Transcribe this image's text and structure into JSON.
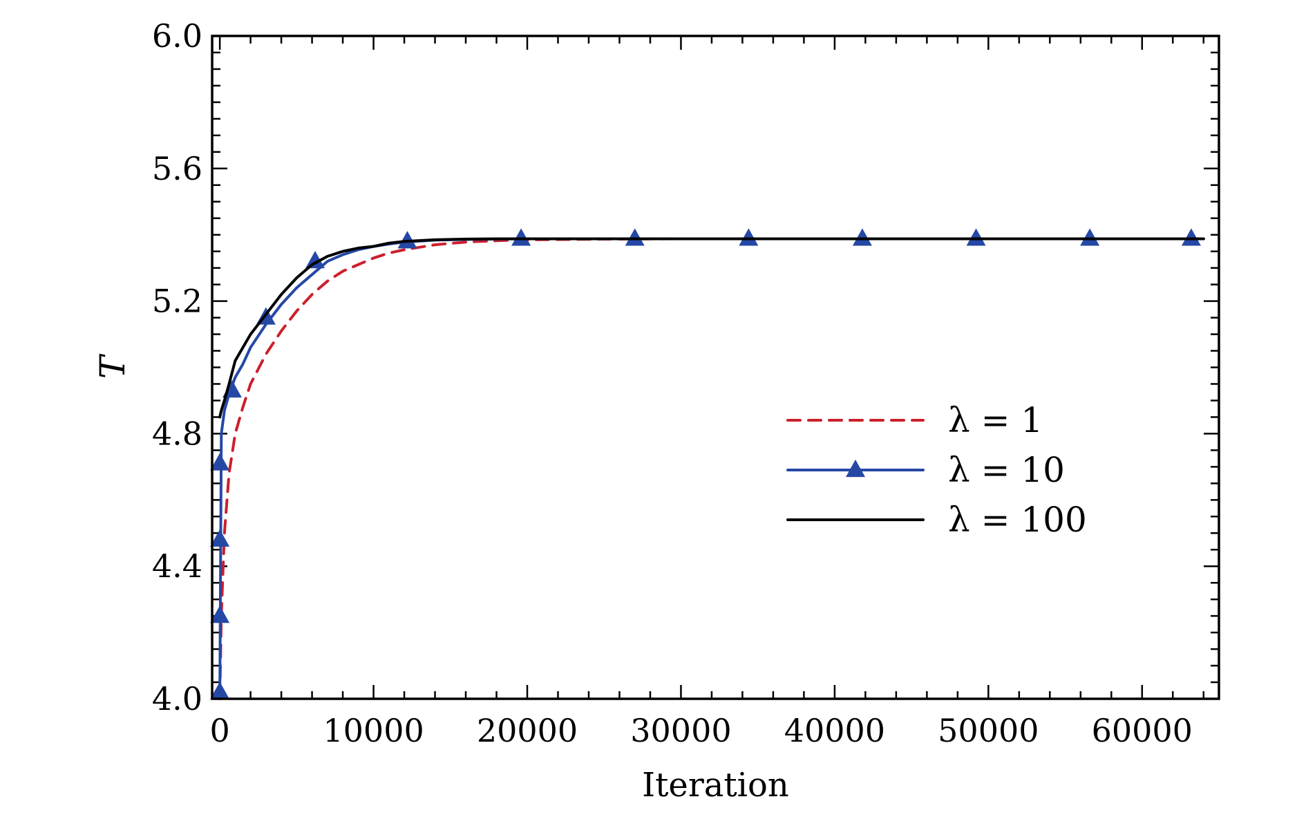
{
  "chart_data": {
    "type": "line",
    "title": "",
    "xlabel": "Iteration",
    "ylabel": "T",
    "xlim": [
      -500,
      65000
    ],
    "ylim": [
      4.0,
      6.0
    ],
    "xticks": [
      0,
      10000,
      20000,
      30000,
      40000,
      50000,
      60000
    ],
    "xtick_labels": [
      "0",
      "10000",
      "20000",
      "30000",
      "40000",
      "50000",
      "60000"
    ],
    "yticks": [
      4.0,
      4.4,
      4.8,
      5.2,
      5.6,
      6.0
    ],
    "ytick_labels": [
      "4.0",
      "4.4",
      "4.8",
      "5.2",
      "5.6",
      "6.0"
    ],
    "grid": false,
    "legend_position": "center-right",
    "series": [
      {
        "name": "λ = 1",
        "style": "dashed",
        "color": "#cc1f2b",
        "x": [
          0,
          100,
          300,
          600,
          1000,
          1500,
          2000,
          3000,
          4000,
          5000,
          6000,
          7000,
          8000,
          9000,
          10000,
          11000,
          12000,
          14000,
          16000,
          18000,
          20000,
          25000,
          30000,
          40000,
          50000,
          60000,
          64000
        ],
        "y": [
          4.0,
          4.25,
          4.5,
          4.68,
          4.8,
          4.88,
          4.95,
          5.04,
          5.11,
          5.17,
          5.22,
          5.26,
          5.29,
          5.31,
          5.33,
          5.345,
          5.355,
          5.37,
          5.378,
          5.382,
          5.385,
          5.387,
          5.388,
          5.388,
          5.388,
          5.388,
          5.388
        ]
      },
      {
        "name": "λ = 10",
        "style": "solid-triangles",
        "color": "#2548a5",
        "x": [
          0,
          100,
          300,
          600,
          1000,
          1500,
          2000,
          3000,
          4000,
          5000,
          6000,
          7000,
          8000,
          9000,
          10000,
          11000,
          12000,
          14000,
          16000,
          18000,
          20000,
          25000,
          30000,
          40000,
          50000,
          60000,
          64000
        ],
        "y": [
          4.0,
          4.8,
          4.87,
          4.92,
          4.97,
          5.01,
          5.06,
          5.13,
          5.19,
          5.24,
          5.28,
          5.32,
          5.34,
          5.355,
          5.365,
          5.372,
          5.378,
          5.384,
          5.386,
          5.387,
          5.388,
          5.388,
          5.388,
          5.388,
          5.388,
          5.388,
          5.388
        ],
        "marker_x": [
          0,
          0,
          0,
          0,
          800,
          3000,
          6200,
          12200,
          19600,
          27000,
          34400,
          41800,
          49200,
          56600,
          63200
        ],
        "marker_y": [
          4.02,
          4.25,
          4.48,
          4.71,
          4.93,
          5.15,
          5.32,
          5.38,
          5.388,
          5.388,
          5.388,
          5.388,
          5.388,
          5.388,
          5.388
        ]
      },
      {
        "name": "λ = 100",
        "style": "solid",
        "color": "#000000",
        "x": [
          0,
          100,
          300,
          600,
          1000,
          1500,
          2000,
          3000,
          4000,
          5000,
          6000,
          7000,
          8000,
          9000,
          10000,
          11000,
          12000,
          14000,
          16000,
          18000,
          20000,
          25000,
          30000,
          40000,
          50000,
          60000,
          64000
        ],
        "y": [
          4.85,
          4.87,
          4.9,
          4.95,
          5.02,
          5.06,
          5.1,
          5.16,
          5.22,
          5.27,
          5.31,
          5.335,
          5.35,
          5.36,
          5.365,
          5.375,
          5.38,
          5.385,
          5.387,
          5.388,
          5.388,
          5.388,
          5.388,
          5.388,
          5.388,
          5.388,
          5.388
        ]
      }
    ]
  }
}
